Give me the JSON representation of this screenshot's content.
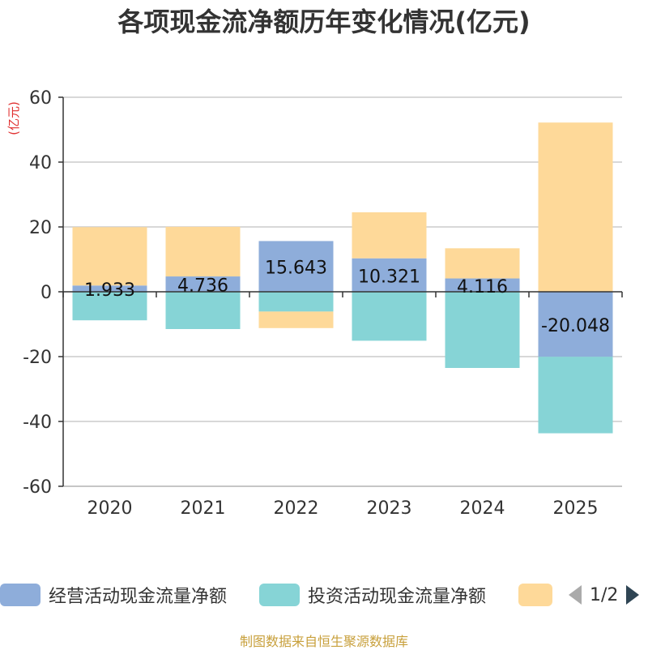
{
  "title": "各项现金流净额历年变化情况(亿元)",
  "source": "制图数据来自恒生聚源数据库",
  "legend": {
    "items": [
      {
        "label": "经营活动现金流量净额",
        "color": "#8eadda"
      },
      {
        "label": "投资活动现金流量净额",
        "color": "#86d4d6"
      },
      {
        "label": "",
        "color": "#fed999"
      }
    ],
    "page": "1/2"
  },
  "chart_data": {
    "type": "bar",
    "stacked": true,
    "ylabel": "(亿元)",
    "ylim": [
      -60,
      60
    ],
    "yticks": [
      60,
      40,
      20,
      0,
      -20,
      -40,
      -60
    ],
    "categories": [
      "2020",
      "2021",
      "2022",
      "2023",
      "2024",
      "2025"
    ],
    "series": [
      {
        "name": "经营活动现金流量净额",
        "color": "#8eadda",
        "values": [
          1.933,
          4.736,
          15.643,
          10.321,
          4.116,
          -20.048
        ],
        "labels": [
          "1.933",
          "4.736",
          "15.643",
          "10.321",
          "4.116",
          "-20.048"
        ]
      },
      {
        "name": "投资活动现金流量净额",
        "color": "#86d4d6",
        "values": [
          -8.8,
          -11.5,
          -6.1,
          -15.1,
          -23.5,
          -23.6
        ]
      },
      {
        "name": "",
        "color": "#fed999",
        "values": [
          18.0,
          15.3,
          -5.1,
          14.2,
          9.3,
          52.2
        ]
      }
    ]
  }
}
